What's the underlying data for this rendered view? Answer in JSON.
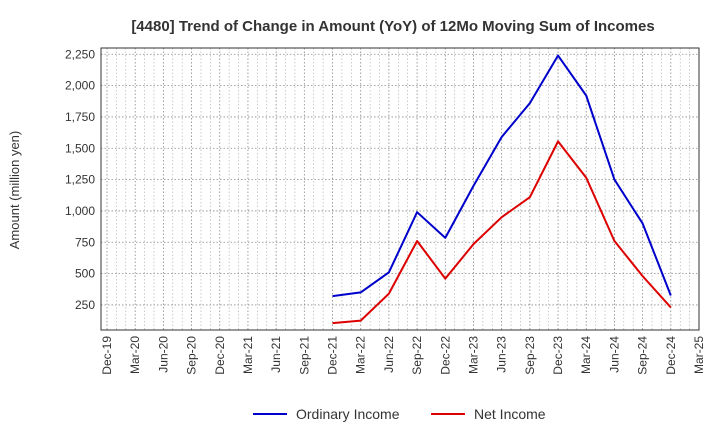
{
  "chart_data": {
    "type": "line",
    "title": "[4480]  Trend of Change in Amount (YoY) of 12Mo Moving Sum of Incomes",
    "ylabel": "Amount (million yen)",
    "xlabel": "",
    "ylim": [
      50,
      2300
    ],
    "yticks": [
      250,
      500,
      750,
      1000,
      1250,
      1500,
      1750,
      2000,
      2250
    ],
    "ytick_labels": [
      "250",
      "500",
      "750",
      "1,000",
      "1,250",
      "1,500",
      "1,750",
      "2,000",
      "2,250"
    ],
    "categories": [
      "Dec-19",
      "Mar-20",
      "Jun-20",
      "Sep-20",
      "Dec-20",
      "Mar-21",
      "Jun-21",
      "Sep-21",
      "Dec-21",
      "Mar-22",
      "Jun-22",
      "Sep-22",
      "Dec-22",
      "Mar-23",
      "Jun-23",
      "Sep-23",
      "Dec-23",
      "Mar-24",
      "Jun-24",
      "Sep-24",
      "Dec-24",
      "Mar-25"
    ],
    "grid": true,
    "legend_position": "bottom",
    "series": [
      {
        "name": "Ordinary Income",
        "color": "#0000cc",
        "values": [
          null,
          null,
          null,
          null,
          null,
          null,
          null,
          null,
          320,
          350,
          510,
          990,
          785,
          1200,
          1590,
          1860,
          2240,
          1920,
          1250,
          900,
          325,
          null
        ]
      },
      {
        "name": "Net Income",
        "color": "#dd0000",
        "values": [
          null,
          null,
          null,
          null,
          null,
          null,
          null,
          null,
          105,
          125,
          340,
          760,
          460,
          735,
          950,
          1110,
          1555,
          1265,
          760,
          480,
          230,
          null
        ]
      }
    ]
  }
}
